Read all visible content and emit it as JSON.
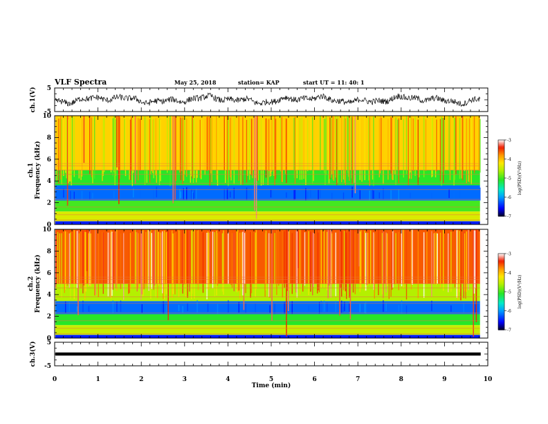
{
  "header": {
    "title": "VLF Spectra",
    "date": "May 25, 2018",
    "station": "station= KAP",
    "start_ut": "start  UT  =   11: 40: 1"
  },
  "chart_data": [
    {
      "type": "line",
      "ylabel": "ch.1(V)",
      "ylim": [
        -5,
        5
      ],
      "yticks": [
        "5",
        "-5"
      ],
      "xlim": [
        0,
        10
      ],
      "series": [
        {
          "color": "#000000",
          "description_values_range": [
            -3,
            2
          ]
        }
      ]
    },
    {
      "type": "heatmap",
      "ylabel": "ch.1\nFrequency (kHz)",
      "ylabel_lines": [
        "ch.1",
        "Frequency  (kHz)"
      ],
      "ylim": [
        0,
        10
      ],
      "yticks": [
        "0",
        "2",
        "4",
        "6",
        "8",
        "10"
      ],
      "xlim": [
        0,
        10
      ],
      "colorbar": {
        "label": "log(PSD)(V²/Hz)",
        "range": [
          -7,
          -3
        ],
        "ticks": [
          "-3",
          "-4",
          "-5",
          "-6",
          "-7"
        ]
      },
      "bands_khz": [
        {
          "from": 0,
          "to": 0.3,
          "level": -6.5
        },
        {
          "from": 0.3,
          "to": 1.2,
          "level": -4.4
        },
        {
          "from": 1.2,
          "to": 2.2,
          "level": -5.0
        },
        {
          "from": 2.2,
          "to": 3.6,
          "level": -6.2
        },
        {
          "from": 3.6,
          "to": 5.0,
          "level": -5.1
        },
        {
          "from": 5.0,
          "to": 10.0,
          "level": -4.1
        }
      ]
    },
    {
      "type": "heatmap",
      "ylabel": "ch.2\nFrequency (kHz)",
      "ylabel_lines": [
        "ch.2",
        "Frequency  (kHz)"
      ],
      "ylim": [
        0,
        10
      ],
      "yticks": [
        "0",
        "2",
        "4",
        "6",
        "8",
        "10"
      ],
      "xlim": [
        0,
        10
      ],
      "colorbar": {
        "label": "log(PSD)(V²/Hz)",
        "range": [
          -7,
          -3
        ],
        "ticks": [
          "-3",
          "-4",
          "-5",
          "-6",
          "-7"
        ]
      },
      "bands_khz": [
        {
          "from": 0,
          "to": 0.3,
          "level": -6.5
        },
        {
          "from": 0.3,
          "to": 1.2,
          "level": -4.5
        },
        {
          "from": 1.2,
          "to": 2.2,
          "level": -5.1
        },
        {
          "from": 2.2,
          "to": 3.4,
          "level": -6.2
        },
        {
          "from": 3.4,
          "to": 5.0,
          "level": -4.6
        },
        {
          "from": 5.0,
          "to": 10.0,
          "level": -3.6
        }
      ]
    },
    {
      "type": "line",
      "ylabel": "ch.3(V)",
      "ylim": [
        -5,
        5
      ],
      "yticks": [
        "5",
        "-5"
      ],
      "xlim": [
        0,
        10
      ],
      "xlabel": "Time (min)",
      "xticks": [
        "0",
        "1",
        "2",
        "3",
        "4",
        "5",
        "6",
        "7",
        "8",
        "9",
        "10"
      ],
      "series": [
        {
          "color": "#000000",
          "constant_value": 0
        }
      ]
    }
  ]
}
